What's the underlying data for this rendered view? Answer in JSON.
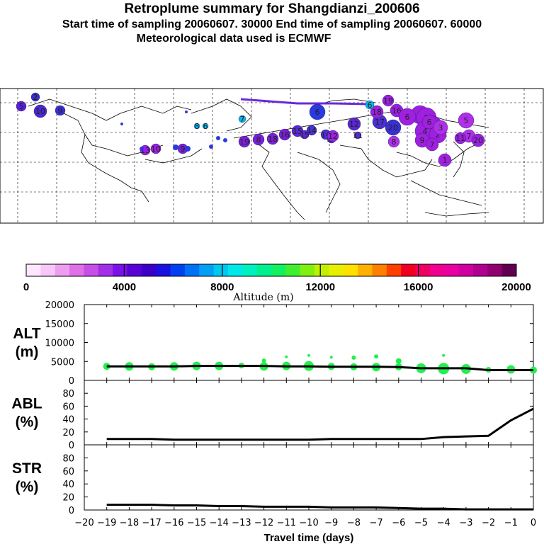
{
  "header": {
    "title": "Retroplume summary for Shangdianzi_200606",
    "sampling": "Start time of sampling 20060607. 30000     End time of sampling 20060607. 60000",
    "met": "Meteorological data used is ECMWF"
  },
  "colorbar": {
    "colors": [
      "#ffe6ff",
      "#f7c8f7",
      "#ee9ef0",
      "#e070e8",
      "#c84ee8",
      "#a22fe8",
      "#7a10ea",
      "#5a00d8",
      "#3a00c8",
      "#1a10e0",
      "#0040f0",
      "#0070f5",
      "#00a0f5",
      "#00c8f0",
      "#00e8e8",
      "#00f0c0",
      "#00f090",
      "#10f060",
      "#40f030",
      "#80f010",
      "#c0f000",
      "#e8f000",
      "#ffe000",
      "#ffb000",
      "#ff8000",
      "#ff4000",
      "#f00020",
      "#f00060",
      "#f00090",
      "#e800a0",
      "#d000a0",
      "#b00090",
      "#900070",
      "#600050"
    ],
    "tick_labels": [
      "0",
      "4000",
      "8000",
      "12000",
      "16000",
      "20000"
    ],
    "label": "Altitude (m)"
  },
  "map": {
    "plumes": [
      {
        "num": "2",
        "color": "#3a2fd0"
      },
      {
        "num": "5",
        "color": "#5a20d8"
      },
      {
        "num": "10",
        "color": "#4a28d0"
      },
      {
        "num": "9",
        "color": "#3a2fd0"
      },
      {
        "num": "6",
        "color": "#2a3ae0"
      },
      {
        "num": "7",
        "color": "#00b8f0"
      },
      {
        "num": "8",
        "color": "#00b8f0"
      },
      {
        "num": "6",
        "color": "#00b8f0"
      },
      {
        "num": "19",
        "color": "#7a20d8"
      },
      {
        "num": "18",
        "color": "#7a20d8"
      },
      {
        "num": "16",
        "color": "#7a20d8"
      },
      {
        "num": "15",
        "color": "#5a28d0"
      },
      {
        "num": "14",
        "color": "#4a30d0"
      },
      {
        "num": "13",
        "color": "#4a30d0"
      },
      {
        "num": "12",
        "color": "#5a28d0"
      },
      {
        "num": "11",
        "color": "#5a28d0"
      },
      {
        "num": "17",
        "color": "#4a30d0"
      },
      {
        "num": "20",
        "color": "#3a2fd0"
      },
      {
        "num": "19",
        "color": "#9a20e0"
      },
      {
        "num": "18",
        "color": "#9a20e0"
      },
      {
        "num": "16",
        "color": "#9a20e0"
      },
      {
        "num": "3",
        "color": "#9a20e0"
      },
      {
        "num": "8",
        "color": "#a020e0"
      },
      {
        "num": "5",
        "color": "#a020e0"
      },
      {
        "num": "6",
        "color": "#a020e0"
      },
      {
        "num": "4",
        "color": "#a020e0"
      },
      {
        "num": "2",
        "color": "#a020e0"
      },
      {
        "num": "9",
        "color": "#a020e0"
      },
      {
        "num": "7",
        "color": "#a020e0"
      },
      {
        "num": "1",
        "color": "#a020e0"
      },
      {
        "num": "8",
        "color": "#b030e8"
      },
      {
        "num": "6",
        "color": "#a020e0"
      },
      {
        "num": "3",
        "color": "#b030e8"
      },
      {
        "num": "5",
        "color": "#b030e8"
      },
      {
        "num": "7",
        "color": "#b030e8"
      },
      {
        "num": "20",
        "color": "#9a20e0"
      },
      {
        "num": "11",
        "color": "#9a20e0"
      },
      {
        "num": "12",
        "color": "#9a20e0"
      },
      {
        "num": "13",
        "color": "#9a20e0"
      },
      {
        "num": "10",
        "color": "#9a20e0"
      },
      {
        "num": "9",
        "color": "#7a20d8"
      },
      {
        "num": "8",
        "color": "#7a20d8"
      },
      {
        "num": "14",
        "color": "#4a30d0"
      },
      {
        "num": "15",
        "color": "#5a28d0"
      },
      {
        "num": "6",
        "color": "#00b8f0"
      }
    ]
  },
  "chart_data": [
    {
      "type": "scatter",
      "panel": "ALT",
      "ylabel_lines": [
        "ALT",
        "(m)"
      ],
      "ylim": [
        0,
        20000
      ],
      "yticks": [
        0,
        5000,
        10000,
        15000,
        20000
      ],
      "xlim": [
        -20,
        0
      ],
      "median_line": {
        "x": [
          -19,
          -18,
          -17,
          -16,
          -15,
          -14,
          -13,
          -12,
          -11,
          -10,
          -9,
          -8,
          -7,
          -6,
          -5,
          -4,
          -3,
          -2,
          -1,
          0
        ],
        "y": [
          3700,
          3700,
          3700,
          3700,
          3800,
          3800,
          3800,
          3800,
          3700,
          3700,
          3600,
          3600,
          3600,
          3500,
          3200,
          3200,
          3200,
          2700,
          2700,
          2700
        ]
      },
      "point_color": "#20f050",
      "points": [
        {
          "x": -19,
          "y": 3700,
          "r": 5
        },
        {
          "x": -18,
          "y": 3700,
          "r": 6
        },
        {
          "x": -17,
          "y": 3600,
          "r": 5
        },
        {
          "x": -16,
          "y": 3700,
          "r": 6
        },
        {
          "x": -15,
          "y": 3800,
          "r": 6
        },
        {
          "x": -14,
          "y": 3800,
          "r": 6
        },
        {
          "x": -13,
          "y": 3900,
          "r": 4
        },
        {
          "x": -12,
          "y": 3700,
          "r": 6
        },
        {
          "x": -11,
          "y": 3800,
          "r": 6
        },
        {
          "x": -10,
          "y": 3800,
          "r": 7
        },
        {
          "x": -9,
          "y": 3700,
          "r": 5
        },
        {
          "x": -8,
          "y": 3600,
          "r": 5
        },
        {
          "x": -7,
          "y": 3500,
          "r": 6
        },
        {
          "x": -6,
          "y": 3600,
          "r": 5
        },
        {
          "x": -5,
          "y": 3200,
          "r": 7
        },
        {
          "x": -4,
          "y": 3100,
          "r": 8
        },
        {
          "x": -3,
          "y": 3000,
          "r": 7
        },
        {
          "x": -2,
          "y": 2800,
          "r": 4
        },
        {
          "x": -1,
          "y": 2900,
          "r": 6
        },
        {
          "x": 0,
          "y": 2700,
          "r": 5
        },
        {
          "x": -12,
          "y": 5200,
          "r": 3
        },
        {
          "x": -11,
          "y": 6200,
          "r": 2
        },
        {
          "x": -10,
          "y": 6600,
          "r": 2
        },
        {
          "x": -9,
          "y": 6100,
          "r": 2
        },
        {
          "x": -8,
          "y": 6000,
          "r": 3
        },
        {
          "x": -7,
          "y": 6300,
          "r": 3
        },
        {
          "x": -6,
          "y": 5100,
          "r": 4
        },
        {
          "x": -4,
          "y": 6600,
          "r": 2
        }
      ]
    },
    {
      "type": "line",
      "panel": "ABL",
      "ylabel_lines": [
        "ABL",
        "(%)"
      ],
      "ylim": [
        0,
        100
      ],
      "yticks": [
        0,
        20,
        40,
        60,
        80
      ],
      "xlim": [
        -20,
        0
      ],
      "x": [
        -19,
        -18,
        -17,
        -16,
        -15,
        -14,
        -13,
        -12,
        -11,
        -10,
        -9,
        -8,
        -7,
        -6,
        -5,
        -4,
        -3,
        -2,
        -1,
        0
      ],
      "y": [
        9,
        9,
        9,
        8,
        8,
        8,
        8,
        8,
        8,
        8,
        9,
        9,
        9,
        9,
        9,
        12,
        13,
        14,
        38,
        56
      ]
    },
    {
      "type": "line",
      "panel": "STR",
      "ylabel_lines": [
        "STR",
        "(%)"
      ],
      "ylim": [
        0,
        100
      ],
      "yticks": [
        0,
        20,
        40,
        60,
        80
      ],
      "xlim": [
        -20,
        0
      ],
      "x": [
        -19,
        -18,
        -17,
        -16,
        -15,
        -14,
        -13,
        -12,
        -11,
        -10,
        -9,
        -8,
        -7,
        -6,
        -5,
        -4,
        -3,
        -2,
        -1,
        0
      ],
      "y": [
        8,
        8,
        8,
        7,
        7,
        6,
        6,
        5,
        5,
        5,
        4,
        4,
        4,
        3,
        2,
        2,
        1,
        1,
        1,
        1
      ],
      "xticks": [
        -20,
        -19,
        -18,
        -17,
        -16,
        -15,
        -14,
        -13,
        -12,
        -11,
        -10,
        -9,
        -8,
        -7,
        -6,
        -5,
        -4,
        -3,
        -2,
        -1,
        0
      ],
      "xlabel": "Travel time (days)"
    }
  ]
}
